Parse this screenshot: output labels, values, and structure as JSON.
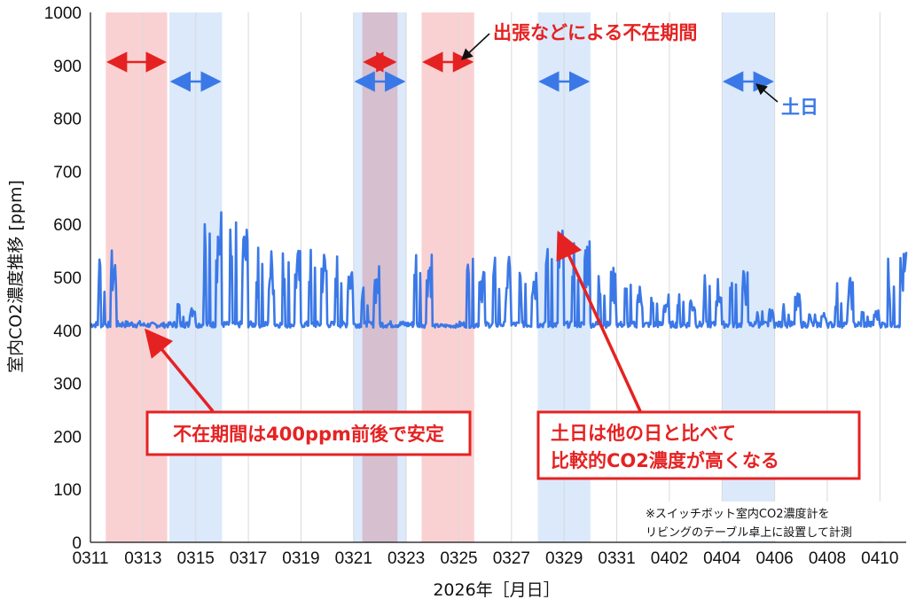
{
  "chart_data": {
    "type": "line",
    "title": "",
    "xlabel": "2026年［月日］",
    "ylabel": "室内CO2濃度推移 [ppm]",
    "ylim": [
      0,
      1000
    ],
    "yticks": [
      0,
      100,
      200,
      300,
      400,
      500,
      600,
      700,
      800,
      900,
      1000
    ],
    "xlim": [
      "03-11",
      "04-11"
    ],
    "xtick_labels": [
      "0311",
      "0313",
      "0315",
      "0317",
      "0319",
      "0321",
      "0323",
      "0325",
      "0327",
      "0329",
      "0331",
      "0402",
      "0404",
      "0406",
      "0408",
      "0410"
    ],
    "grid": "vertical",
    "colors": {
      "line": "#3b78e7",
      "absence": "#f9c6c8",
      "weekend": "#cfe2fa",
      "annotation_red": "#e52222",
      "annotation_blue": "#3b78e7"
    },
    "absence_periods": [
      {
        "start": "03-11 14:00",
        "end": "03-13 22:00"
      },
      {
        "start": "03-21 08:00",
        "end": "03-22 16:00"
      },
      {
        "start": "03-23 14:00",
        "end": "03-25 14:00"
      }
    ],
    "weekend_periods": [
      {
        "start": "03-14",
        "end": "03-16"
      },
      {
        "start": "03-21",
        "end": "03-23"
      },
      {
        "start": "03-28",
        "end": "03-30"
      },
      {
        "start": "04-04",
        "end": "04-06"
      }
    ],
    "series": [
      {
        "values_note": "approximate daily min / max read from the plot",
        "daily": [
          {
            "day": "03-11",
            "min": 405,
            "max": 555
          },
          {
            "day": "03-12",
            "min": 405,
            "max": 418
          },
          {
            "day": "03-13",
            "min": 405,
            "max": 415
          },
          {
            "day": "03-14",
            "min": 405,
            "max": 460
          },
          {
            "day": "03-15",
            "min": 405,
            "max": 637
          },
          {
            "day": "03-16",
            "min": 405,
            "max": 605
          },
          {
            "day": "03-17",
            "min": 405,
            "max": 560
          },
          {
            "day": "03-18",
            "min": 405,
            "max": 555
          },
          {
            "day": "03-19",
            "min": 405,
            "max": 560
          },
          {
            "day": "03-20",
            "min": 405,
            "max": 550
          },
          {
            "day": "03-21",
            "min": 405,
            "max": 525
          },
          {
            "day": "03-22",
            "min": 405,
            "max": 418
          },
          {
            "day": "03-23",
            "min": 405,
            "max": 565
          },
          {
            "day": "03-24",
            "min": 405,
            "max": 412
          },
          {
            "day": "03-25",
            "min": 405,
            "max": 535
          },
          {
            "day": "03-26",
            "min": 405,
            "max": 540
          },
          {
            "day": "03-27",
            "min": 405,
            "max": 535
          },
          {
            "day": "03-28",
            "min": 405,
            "max": 600
          },
          {
            "day": "03-29",
            "min": 405,
            "max": 590
          },
          {
            "day": "03-30",
            "min": 405,
            "max": 520
          },
          {
            "day": "03-31",
            "min": 405,
            "max": 490
          },
          {
            "day": "04-01",
            "min": 405,
            "max": 470
          },
          {
            "day": "04-02",
            "min": 405,
            "max": 470
          },
          {
            "day": "04-03",
            "min": 405,
            "max": 505
          },
          {
            "day": "04-04",
            "min": 405,
            "max": 515
          },
          {
            "day": "04-05",
            "min": 405,
            "max": 440
          },
          {
            "day": "04-06",
            "min": 405,
            "max": 470
          },
          {
            "day": "04-07",
            "min": 405,
            "max": 435
          },
          {
            "day": "04-08",
            "min": 405,
            "max": 500
          },
          {
            "day": "04-09",
            "min": 405,
            "max": 440
          },
          {
            "day": "04-10",
            "min": 405,
            "max": 550
          }
        ]
      }
    ]
  },
  "annotations": {
    "absence_label": "出張などによる不在期間",
    "weekend_label": "土日",
    "box1": "不在期間は400ppm前後で安定",
    "box2_line1": "土日は他の日と比べて",
    "box2_line2": "比較的CO2濃度が高くなる",
    "note_line1": "※スイッチボット室内CO2濃度計を",
    "note_line2": "リビングのテーブル卓上に設置して計測"
  }
}
